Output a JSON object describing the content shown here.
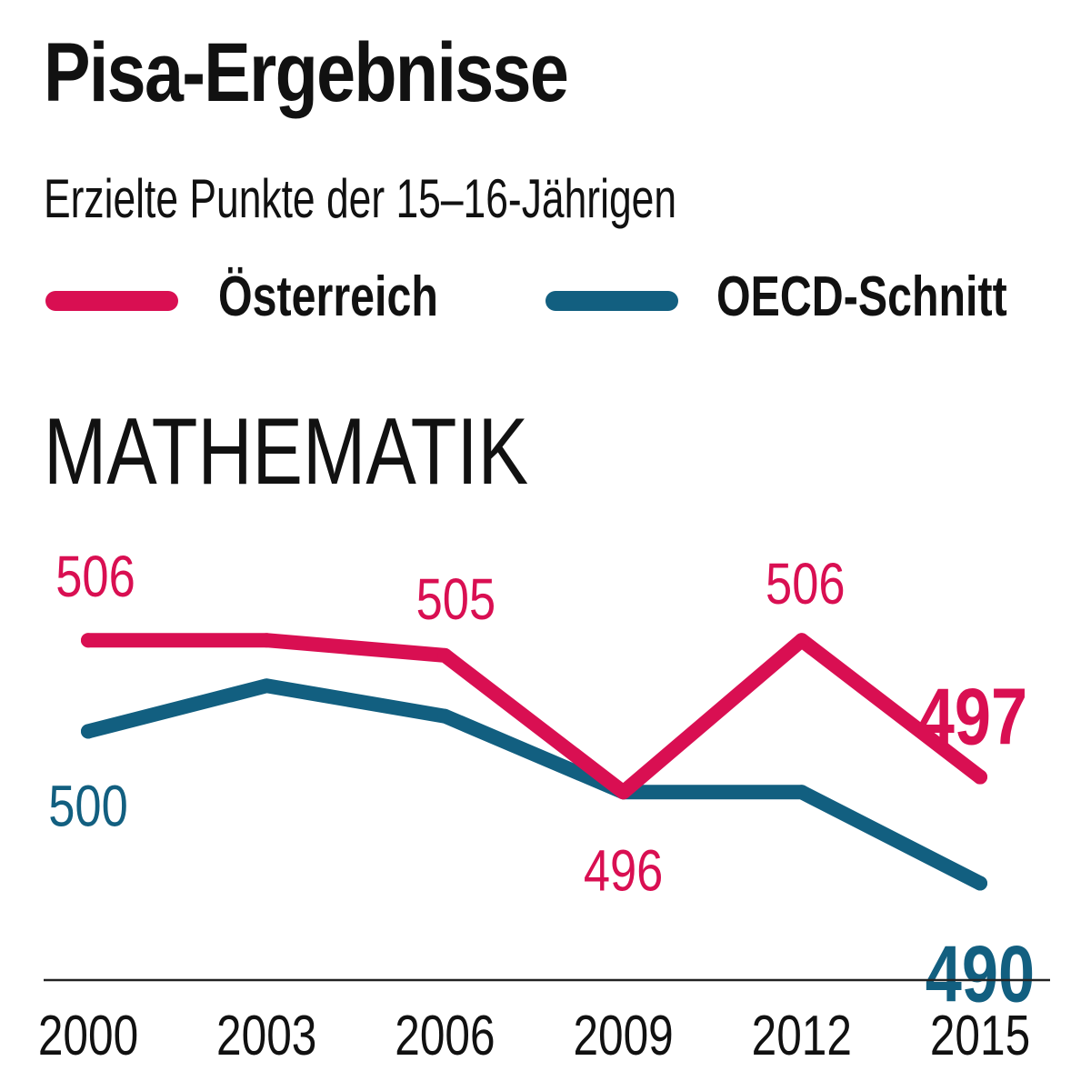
{
  "title": "Pisa-Ergebnisse",
  "subtitle": "Erzielte Punkte der 15–16-Jährigen",
  "section_title": "MATHEMATIK",
  "legend": [
    {
      "label": "Österreich",
      "color": "#d90f52"
    },
    {
      "label": "OECD-Schnitt",
      "color": "#125f80"
    }
  ],
  "colors": {
    "austria": "#d90f52",
    "oecd": "#125f80",
    "axis": "#222222",
    "text": "#111111"
  },
  "chart_data": {
    "type": "line",
    "title": "MATHEMATIK",
    "x": [
      "2000",
      "2003",
      "2006",
      "2009",
      "2012",
      "2015"
    ],
    "ylim": [
      485,
      512
    ],
    "grid": false,
    "legend_position": "top",
    "series": [
      {
        "name": "Österreich",
        "color": "#d90f52",
        "values": [
          506,
          506,
          505,
          496,
          506,
          497
        ],
        "data_labels": [
          {
            "index": 0,
            "text": "506",
            "position": "above",
            "emphasis": false
          },
          {
            "index": 2,
            "text": "505",
            "position": "above",
            "emphasis": false
          },
          {
            "index": 3,
            "text": "496",
            "position": "below",
            "emphasis": false
          },
          {
            "index": 4,
            "text": "506",
            "position": "above",
            "emphasis": false
          },
          {
            "index": 5,
            "text": "497",
            "position": "above",
            "emphasis": true
          }
        ]
      },
      {
        "name": "OECD-Schnitt",
        "color": "#125f80",
        "values": [
          500,
          503,
          501,
          496,
          496,
          490
        ],
        "data_labels": [
          {
            "index": 0,
            "text": "500",
            "position": "below",
            "emphasis": false
          },
          {
            "index": 5,
            "text": "490",
            "position": "below",
            "emphasis": true
          }
        ]
      }
    ]
  }
}
